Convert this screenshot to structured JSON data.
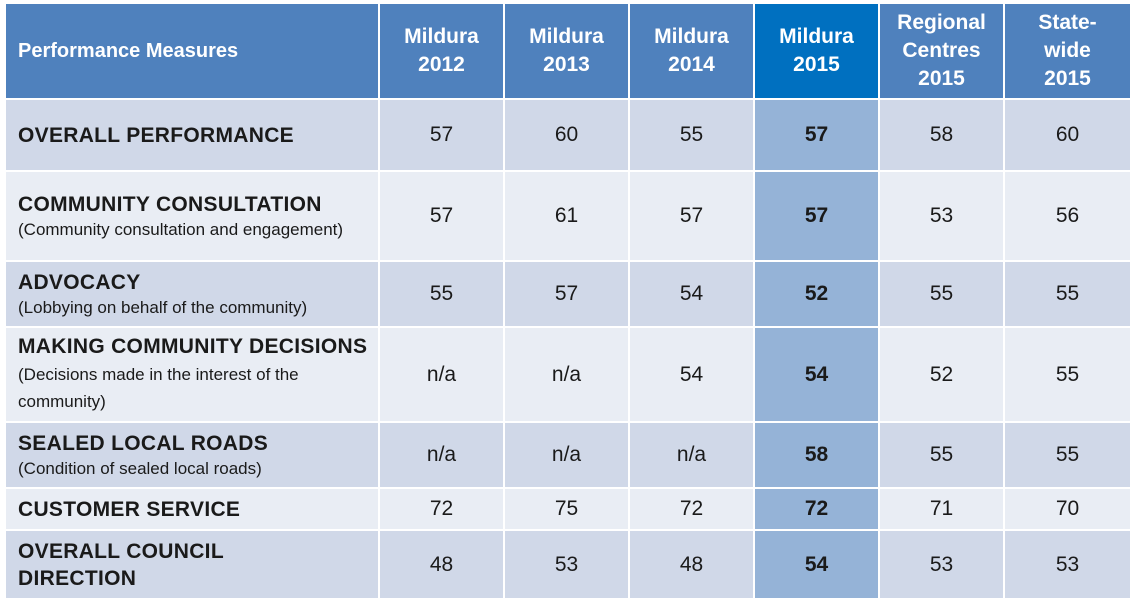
{
  "headers": [
    "Performance Measures",
    "Mildura 2012",
    "Mildura 2013",
    "Mildura 2014",
    "Mildura 2015",
    "Regional Centres 2015",
    "State-wide 2015"
  ],
  "header_lines": [
    [
      "Performance Measures"
    ],
    [
      "Mildura",
      "2012"
    ],
    [
      "Mildura",
      "2013"
    ],
    [
      "Mildura",
      "2014"
    ],
    [
      "Mildura",
      "2015"
    ],
    [
      "Regional",
      "Centres",
      "2015"
    ],
    [
      "State-",
      "wide",
      "2015"
    ]
  ],
  "rows": [
    {
      "title": "OVERALL PERFORMANCE",
      "subtitle": "",
      "values": [
        "57",
        "60",
        "55",
        "57",
        "58",
        "60"
      ]
    },
    {
      "title": "COMMUNITY CONSULTATION",
      "subtitle": "(Community consultation and engagement)",
      "values": [
        "57",
        "61",
        "57",
        "57",
        "53",
        "56"
      ]
    },
    {
      "title": "ADVOCACY",
      "subtitle": "(Lobbying on behalf of the community)",
      "values": [
        "55",
        "57",
        "54",
        "52",
        "55",
        "55"
      ]
    },
    {
      "title": "MAKING COMMUNITY DECISIONS",
      "subtitle": "(Decisions made in the interest of the community)",
      "values": [
        "n/a",
        "n/a",
        "54",
        "54",
        "52",
        "55"
      ]
    },
    {
      "title": "SEALED LOCAL ROADS",
      "subtitle": "(Condition of sealed local roads)",
      "values": [
        "n/a",
        "n/a",
        "n/a",
        "58",
        "55",
        "55"
      ]
    },
    {
      "title": "CUSTOMER SERVICE",
      "subtitle": "",
      "values": [
        "72",
        "75",
        "72",
        "72",
        "71",
        "70"
      ]
    },
    {
      "title": "OVERALL COUNCIL DIRECTION",
      "subtitle": "",
      "values": [
        "48",
        "53",
        "48",
        "54",
        "53",
        "53"
      ]
    }
  ],
  "colors": {
    "header_bg": "#4f81bd",
    "header_highlight_bg": "#0070c0",
    "row_dark_bg": "#d0d8e8",
    "row_light_bg": "#e9edf4",
    "highlight_cell_bg": "#95b3d7"
  }
}
